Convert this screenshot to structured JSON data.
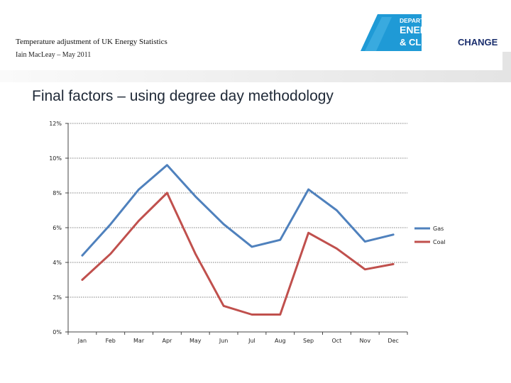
{
  "header": {
    "title": "Temperature adjustment of UK Energy Statistics",
    "subtitle": "Iain MacLeay – May 2011"
  },
  "logo": {
    "line1": "DEPARTMENT OF",
    "line2": "ENERGY",
    "line3a": "& CLIMATE",
    "line3b": "CHANGE",
    "colors": {
      "blue": "#1f9ad6",
      "navy": "#1b2f6e"
    }
  },
  "slide": {
    "title": "Final factors – using degree day methodology"
  },
  "chart_data": {
    "type": "line",
    "categories": [
      "Jan",
      "Feb",
      "Mar",
      "Apr",
      "May",
      "Jun",
      "Jul",
      "Aug",
      "Sep",
      "Oct",
      "Nov",
      "Dec"
    ],
    "series": [
      {
        "name": "Gas",
        "color": "#4f81bd",
        "values": [
          4.4,
          6.2,
          8.2,
          9.6,
          7.8,
          6.2,
          4.9,
          5.3,
          8.2,
          7.0,
          5.2,
          5.6
        ]
      },
      {
        "name": "Coal",
        "color": "#c0504d",
        "values": [
          3.0,
          4.5,
          6.4,
          8.0,
          4.5,
          1.5,
          1.0,
          1.0,
          5.7,
          4.8,
          3.6,
          3.9
        ]
      }
    ],
    "yticks": [
      "0%",
      "2%",
      "4%",
      "6%",
      "8%",
      "10%",
      "12%"
    ],
    "ylim": [
      0,
      12
    ],
    "grid": true,
    "legend": "right"
  }
}
